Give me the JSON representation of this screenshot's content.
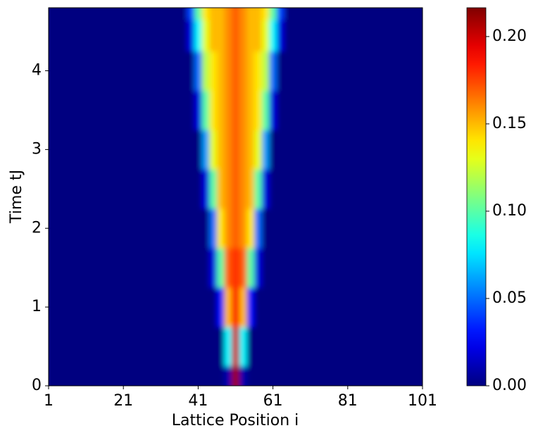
{
  "chart_data": {
    "type": "heatmap",
    "xlabel": "Lattice Position i",
    "ylabel": "Time tJ",
    "x": [
      1,
      21,
      31,
      37,
      39,
      41,
      43,
      45,
      47,
      49,
      51,
      53,
      55,
      57,
      59,
      61,
      63,
      65,
      71,
      81,
      101
    ],
    "y": [
      0,
      0.5,
      1,
      1.5,
      2,
      2.5,
      3,
      3.5,
      4,
      4.5,
      4.8
    ],
    "z": [
      [
        0,
        0,
        0,
        0,
        0,
        0,
        0,
        0,
        0,
        0.01,
        0.21,
        0.01,
        0,
        0,
        0,
        0,
        0,
        0,
        0,
        0,
        0
      ],
      [
        0,
        0,
        0,
        0,
        0,
        0,
        0,
        0,
        0,
        0.08,
        0.2,
        0.08,
        0,
        0,
        0,
        0,
        0,
        0,
        0,
        0,
        0
      ],
      [
        0,
        0,
        0,
        0,
        0,
        0,
        0,
        0,
        0.03,
        0.15,
        0.19,
        0.15,
        0.03,
        0,
        0,
        0,
        0,
        0,
        0,
        0,
        0
      ],
      [
        0,
        0,
        0,
        0,
        0,
        0,
        0,
        0.02,
        0.1,
        0.17,
        0.18,
        0.17,
        0.1,
        0.02,
        0,
        0,
        0,
        0,
        0,
        0,
        0
      ],
      [
        0,
        0,
        0,
        0,
        0,
        0,
        0,
        0.05,
        0.14,
        0.16,
        0.17,
        0.16,
        0.14,
        0.05,
        0,
        0,
        0,
        0,
        0,
        0,
        0
      ],
      [
        0,
        0,
        0,
        0,
        0,
        0,
        0.02,
        0.1,
        0.15,
        0.16,
        0.17,
        0.16,
        0.15,
        0.1,
        0.02,
        0,
        0,
        0,
        0,
        0,
        0
      ],
      [
        0,
        0,
        0,
        0,
        0,
        0,
        0.06,
        0.13,
        0.15,
        0.16,
        0.17,
        0.16,
        0.15,
        0.13,
        0.06,
        0,
        0,
        0,
        0,
        0,
        0
      ],
      [
        0,
        0,
        0,
        0,
        0,
        0.02,
        0.1,
        0.14,
        0.15,
        0.16,
        0.17,
        0.16,
        0.15,
        0.14,
        0.1,
        0.02,
        0,
        0,
        0,
        0,
        0
      ],
      [
        0,
        0,
        0,
        0,
        0,
        0.05,
        0.12,
        0.14,
        0.15,
        0.16,
        0.17,
        0.16,
        0.15,
        0.14,
        0.12,
        0.05,
        0,
        0,
        0,
        0,
        0
      ],
      [
        0,
        0,
        0,
        0,
        0.02,
        0.08,
        0.13,
        0.15,
        0.15,
        0.16,
        0.17,
        0.16,
        0.15,
        0.15,
        0.13,
        0.08,
        0.02,
        0,
        0,
        0,
        0
      ],
      [
        0,
        0,
        0,
        0,
        0.04,
        0.1,
        0.14,
        0.15,
        0.15,
        0.16,
        0.17,
        0.16,
        0.15,
        0.15,
        0.14,
        0.1,
        0.04,
        0,
        0,
        0,
        0
      ]
    ],
    "xlim": [
      1,
      101
    ],
    "xticks": [
      1,
      21,
      41,
      61,
      81,
      101
    ],
    "ylim": [
      0,
      4.8
    ],
    "yticks": [
      0,
      1,
      2,
      3,
      4
    ],
    "colormap": "jet",
    "clim": [
      0,
      0.2165
    ],
    "cticks": [
      {
        "value": 0,
        "label": "0.00"
      },
      {
        "value": 0.05,
        "label": "0.05"
      },
      {
        "value": 0.1,
        "label": "0.10"
      },
      {
        "value": 0.15,
        "label": "0.15"
      },
      {
        "value": 0.2,
        "label": "0.20"
      }
    ]
  }
}
